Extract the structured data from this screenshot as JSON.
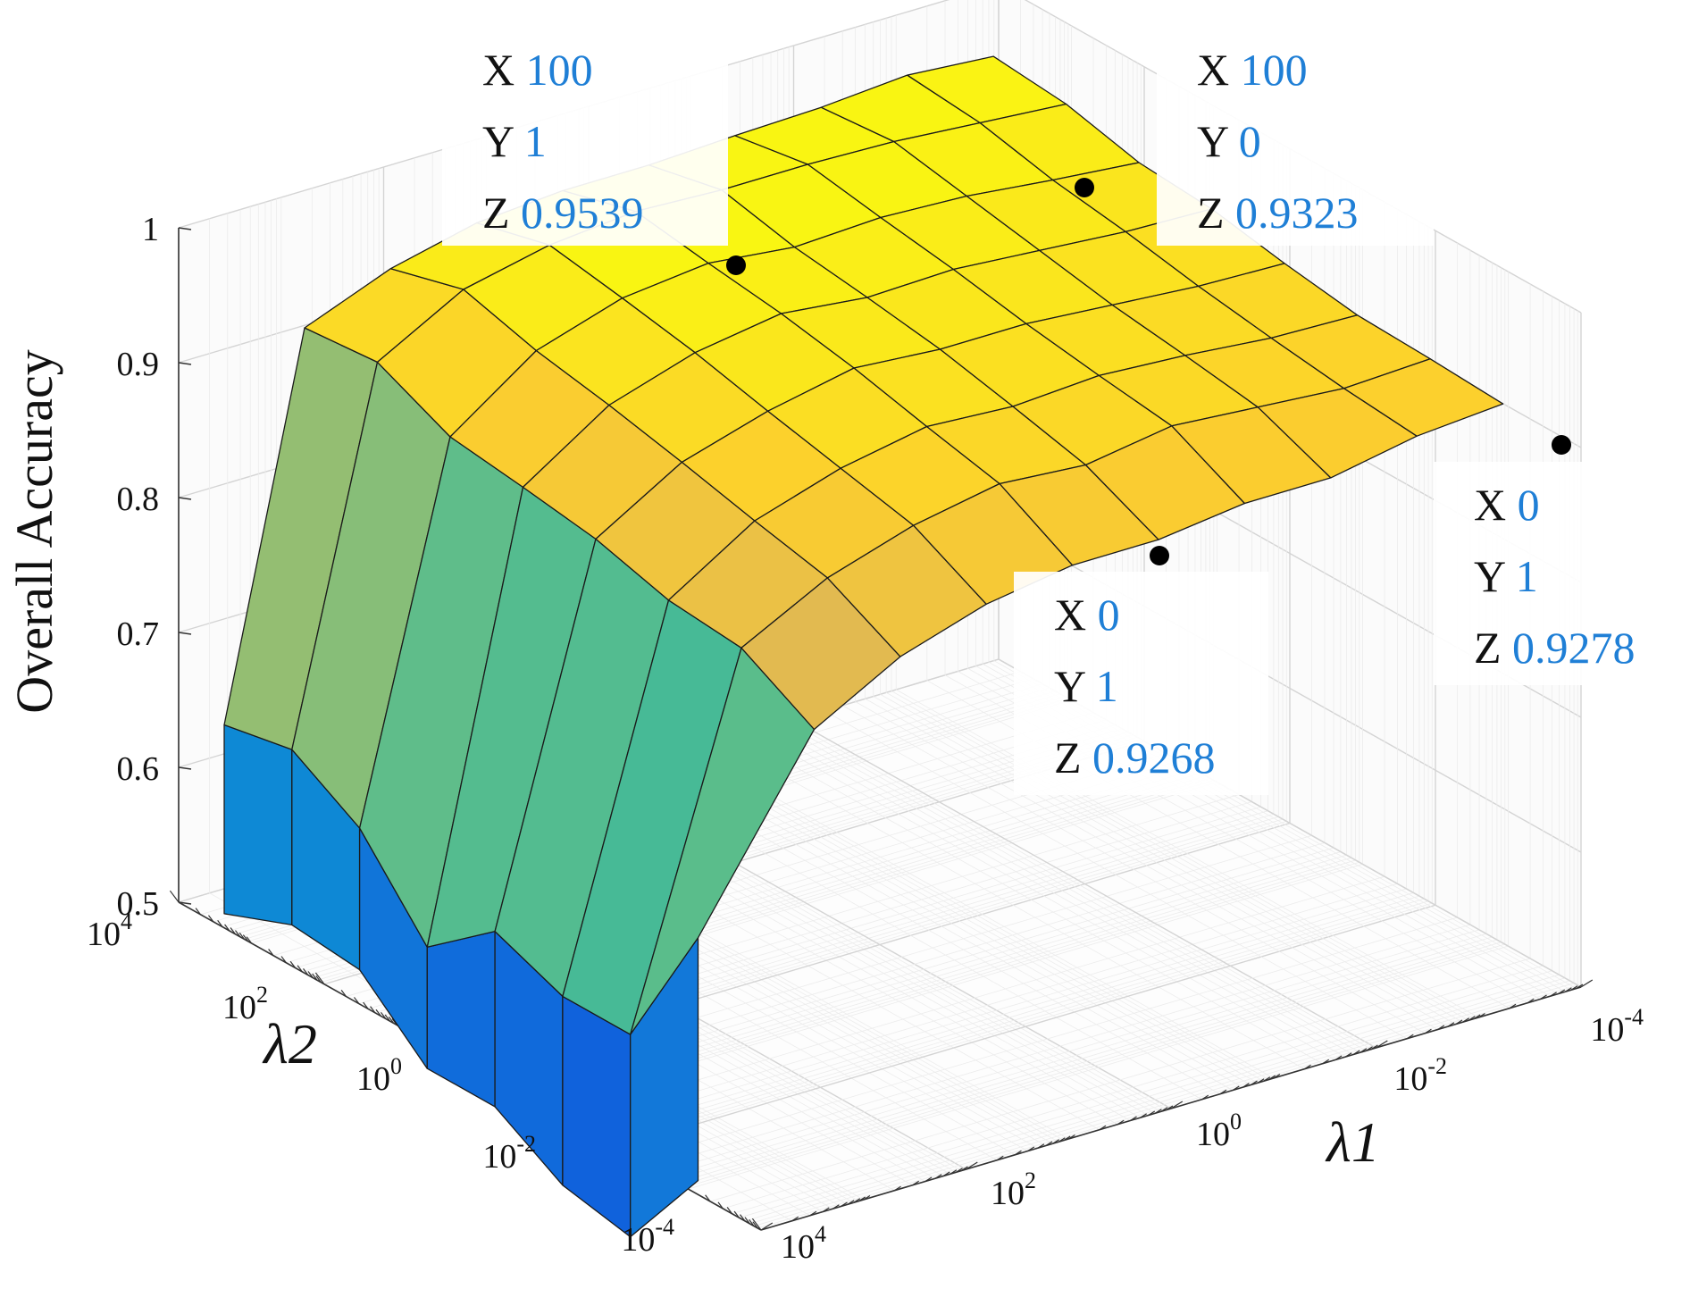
{
  "chart_data": {
    "type": "surface3d",
    "zlabel": "Overall Accuracy",
    "xlabel": "λ1",
    "ylabel": "λ2",
    "zlim": [
      0.5,
      1
    ],
    "z_ticks": [
      "0.5",
      "0.6",
      "0.7",
      "0.8",
      "0.9",
      "1"
    ],
    "x_ticks": [
      {
        "base": "10",
        "exp": "4"
      },
      {
        "base": "10",
        "exp": "2"
      },
      {
        "base": "10",
        "exp": "0"
      },
      {
        "base": "10",
        "exp": "-2"
      },
      {
        "base": "10",
        "exp": "-4"
      }
    ],
    "y_ticks": [
      {
        "base": "10",
        "exp": "4"
      },
      {
        "base": "10",
        "exp": "2"
      },
      {
        "base": "10",
        "exp": "0"
      },
      {
        "base": "10",
        "exp": "-2"
      },
      {
        "base": "10",
        "exp": "-4"
      }
    ],
    "grid": true,
    "colormap": "parula",
    "datatips": [
      {
        "X": "100",
        "Y": "1",
        "Z": "0.9539"
      },
      {
        "X": "100",
        "Y": "0",
        "Z": "0.9323"
      },
      {
        "X": "0",
        "Y": "1",
        "Z": "0.9268"
      },
      {
        "X": "0",
        "Y": "1",
        "Z": "0.9278"
      }
    ]
  }
}
